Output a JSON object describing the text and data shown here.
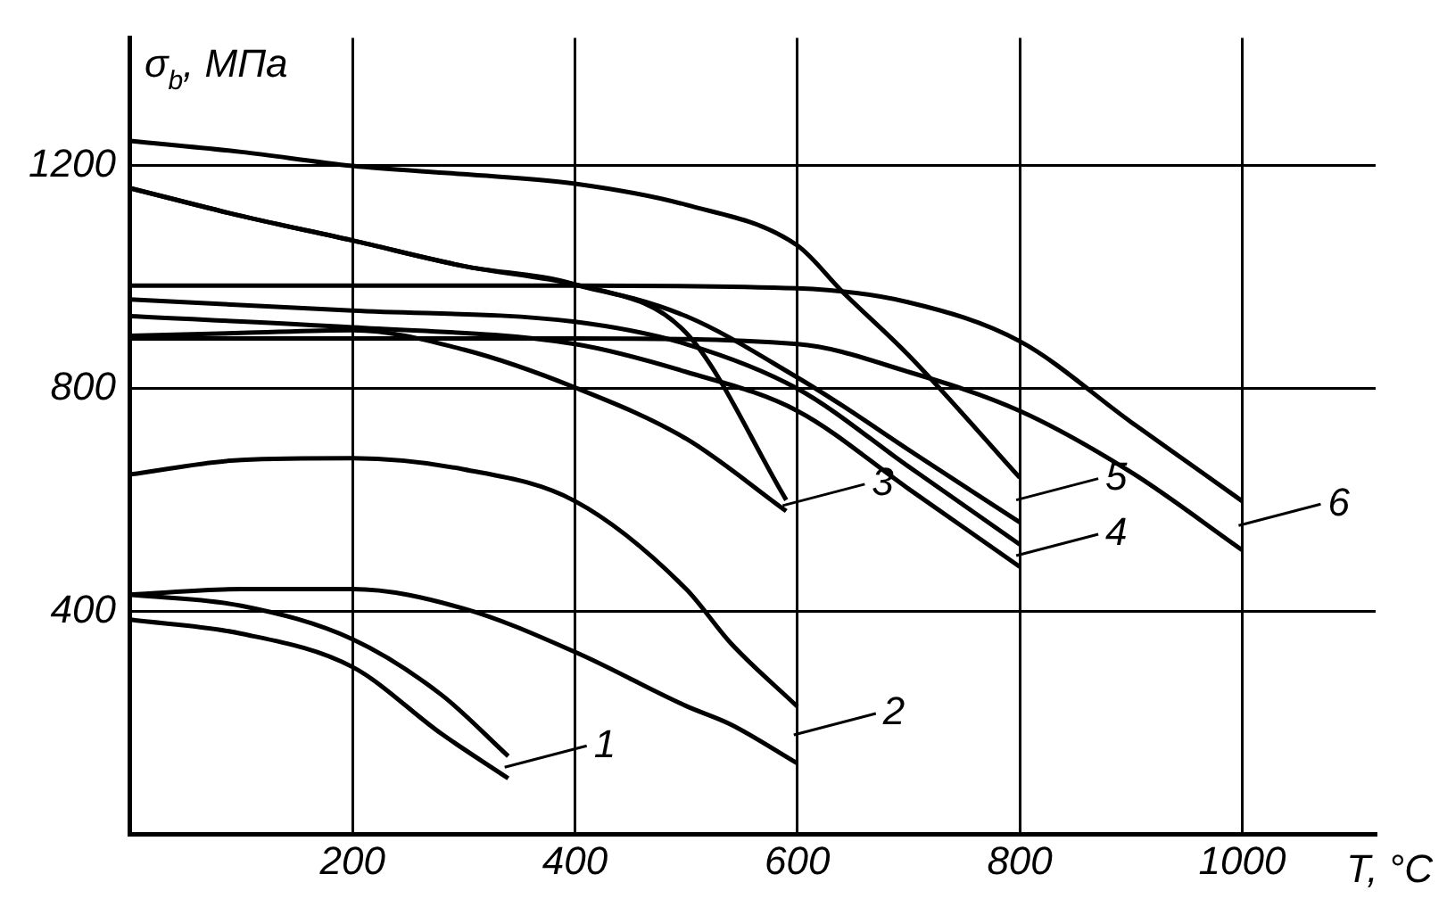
{
  "chart_data": {
    "type": "line",
    "ylabel": "σ$_{b}$, МПа",
    "xlabel": "T, °C",
    "xlim": [
      0,
      1120
    ],
    "ylim": [
      0,
      1430
    ],
    "xticks": [
      200,
      400,
      600,
      800,
      1000
    ],
    "yticks": [
      400,
      800,
      1200
    ],
    "grid": true,
    "legend": "right",
    "marker": "none",
    "line_style": "solid",
    "series": [
      {
        "name": "1",
        "color": "#000000",
        "x": [
          0,
          100,
          200,
          280,
          340
        ],
        "values": [
          430,
          410,
          350,
          250,
          140
        ]
      },
      {
        "color": "#000000",
        "x": [
          0,
          100,
          200,
          280,
          340
        ],
        "values": [
          385,
          360,
          300,
          180,
          100
        ]
      },
      {
        "name": "2",
        "color": "#000000",
        "x": [
          0,
          100,
          200,
          300,
          400,
          500,
          540,
          600
        ],
        "values": [
          646,
          672,
          675,
          655,
          598,
          440,
          343,
          229
        ]
      },
      {
        "color": "#000000",
        "x": [
          0,
          100,
          200,
          300,
          400,
          500,
          540,
          600
        ],
        "values": [
          430,
          440,
          440,
          405,
          327,
          230,
          197,
          127
        ]
      },
      {
        "name": "3",
        "color": "#000000",
        "x": [
          0,
          100,
          200,
          300,
          400,
          500,
          590
        ],
        "values": [
          1160,
          1110,
          1066,
          1020,
          987,
          900,
          600
        ]
      },
      {
        "color": "#000000",
        "x": [
          0,
          100,
          200,
          300,
          400,
          500,
          590
        ],
        "values": [
          895,
          900,
          905,
          870,
          802,
          710,
          580
        ]
      },
      {
        "name": "4",
        "color": "#000000",
        "x": [
          0,
          200,
          400,
          500,
          600,
          700,
          800
        ],
        "values": [
          960,
          940,
          920,
          880,
          800,
          660,
          520
        ]
      },
      {
        "color": "#000000",
        "x": [
          0,
          200,
          400,
          500,
          600,
          700,
          800
        ],
        "values": [
          930,
          910,
          880,
          830,
          760,
          620,
          480
        ]
      },
      {
        "name": "5",
        "color": "#000000",
        "x": [
          0,
          100,
          200,
          300,
          400,
          500,
          600,
          640,
          700,
          800
        ],
        "values": [
          1245,
          1225,
          1200,
          1185,
          1168,
          1130,
          1057,
          975,
          860,
          640
        ]
      },
      {
        "color": "#000000",
        "x": [
          0,
          100,
          200,
          300,
          400,
          500,
          600,
          640,
          700,
          800
        ],
        "values": [
          1160,
          1110,
          1066,
          1020,
          987,
          930,
          820,
          770,
          690,
          560
        ]
      },
      {
        "name": "6",
        "color": "#000000",
        "x": [
          0,
          200,
          400,
          600,
          700,
          800,
          900,
          1000
        ],
        "values": [
          985,
          985,
          985,
          980,
          955,
          885,
          740,
          598
        ]
      },
      {
        "color": "#000000",
        "x": [
          0,
          200,
          400,
          600,
          700,
          800,
          900,
          1000
        ],
        "values": [
          890,
          890,
          890,
          880,
          830,
          760,
          650,
          510
        ]
      }
    ]
  }
}
